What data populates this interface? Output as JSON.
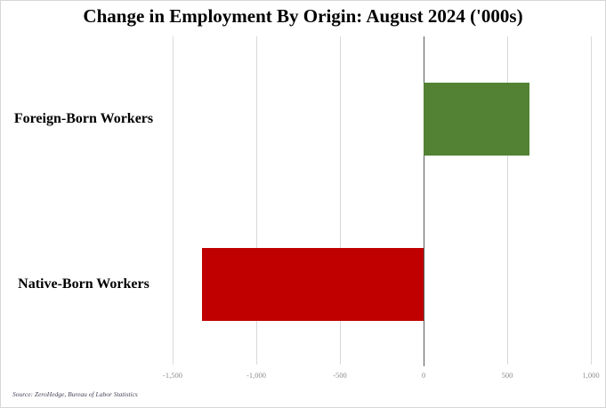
{
  "title": "Change in Employment By Origin: August 2024 ('000s)",
  "source": "Source: ZeroHedge, Bureau of Labor Statistics",
  "chart_data": {
    "type": "bar",
    "orientation": "horizontal",
    "title": "Change in Employment By Origin: August 2024 ('000s)",
    "unit": "thousands of workers",
    "categories": [
      "Foreign-Born Workers",
      "Native-Born Workers"
    ],
    "values": [
      635,
      -1325
    ],
    "bar_colors": [
      "#548235",
      "#c00000"
    ],
    "xlim": [
      -1500,
      1000
    ],
    "ticks": [
      -1500,
      -1000,
      -500,
      0,
      500,
      1000
    ],
    "tick_labels": [
      "-1,500",
      "-1,000",
      "-500",
      "0",
      "500",
      "1,000"
    ],
    "grid": true,
    "gridline_color": "#d9d9d9",
    "zero_line_color": "#595959",
    "legend": "none",
    "annotation": "Source: ZeroHedge, Bureau of Labor Statistics"
  }
}
